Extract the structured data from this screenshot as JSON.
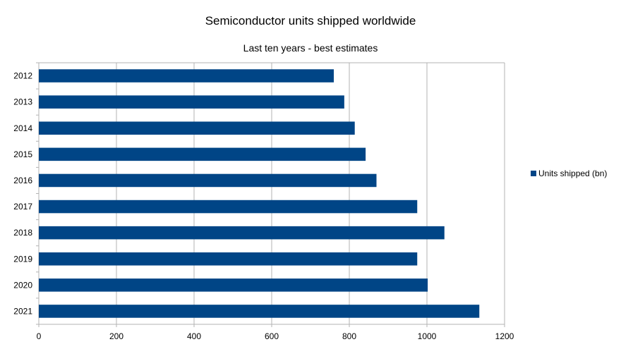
{
  "chart_data": {
    "type": "bar",
    "orientation": "horizontal",
    "title": "Semiconductor units shipped worldwide",
    "subtitle": "Last ten years - best estimates",
    "categories": [
      "2012",
      "2013",
      "2014",
      "2015",
      "2016",
      "2017",
      "2018",
      "2019",
      "2020",
      "2021"
    ],
    "series": [
      {
        "name": "Units shipped (bn)",
        "values": [
          760,
          787,
          814,
          842,
          870,
          975,
          1045,
          975,
          1002,
          1135
        ]
      }
    ],
    "xlim": [
      0,
      1200
    ],
    "xticks": [
      "0",
      "200",
      "400",
      "600",
      "800",
      "1000",
      "1200"
    ],
    "grid": true,
    "legend_position": "right",
    "bar_color": "#004586",
    "grid_color": "#b3b3b3"
  }
}
